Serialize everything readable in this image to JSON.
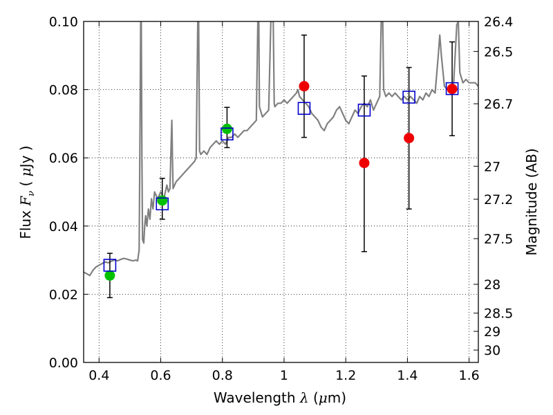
{
  "chart_data": {
    "type": "scatter",
    "title": "",
    "xlabel": "Wavelength  λ (μm)",
    "xlabel_prefix": "Wavelength  ",
    "xlabel_lambda": "λ",
    "xlabel_unit_open": " (",
    "xlabel_mu": "μ",
    "xlabel_unit": "m)",
    "ylabel": "Flux  Fν  ( μJy )",
    "ylabel_prefix": "Flux  ",
    "ylabel_F": "F",
    "ylabel_nu": "ν",
    "ylabel_open": "  ( ",
    "ylabel_mu": "μ",
    "ylabel_unit": "Jy )",
    "y2label": "Magnitude (AB)",
    "xlim": [
      0.35,
      1.63
    ],
    "ylim": [
      0.0,
      0.1
    ],
    "grid": true,
    "xticks": [
      {
        "value": 0.4,
        "label": "0.4"
      },
      {
        "value": 0.6,
        "label": "0.6"
      },
      {
        "value": 0.8,
        "label": "0.8"
      },
      {
        "value": 1.0,
        "label": "1"
      },
      {
        "value": 1.2,
        "label": "1.2"
      },
      {
        "value": 1.4,
        "label": "1.4"
      },
      {
        "value": 1.6,
        "label": "1.6"
      }
    ],
    "yticks": [
      {
        "value": 0.0,
        "label": "0.00"
      },
      {
        "value": 0.02,
        "label": "0.02"
      },
      {
        "value": 0.04,
        "label": "0.04"
      },
      {
        "value": 0.06,
        "label": "0.06"
      },
      {
        "value": 0.08,
        "label": "0.08"
      },
      {
        "value": 0.1,
        "label": "0.10"
      }
    ],
    "y2ticks": [
      {
        "value": 26.4,
        "label": "26.4"
      },
      {
        "value": 26.5,
        "label": "26.5"
      },
      {
        "value": 26.7,
        "label": "26.7"
      },
      {
        "value": 27.0,
        "label": "27"
      },
      {
        "value": 27.2,
        "label": "27.2"
      },
      {
        "value": 27.5,
        "label": "27.5"
      },
      {
        "value": 28.0,
        "label": "28"
      },
      {
        "value": 28.5,
        "label": "28.5"
      },
      {
        "value": 29.0,
        "label": "29"
      },
      {
        "value": 30.0,
        "label": "30"
      }
    ],
    "series": [
      {
        "name": "model spectrum",
        "kind": "line",
        "color": "#808080",
        "points": [
          [
            0.35,
            0.0265
          ],
          [
            0.36,
            0.026
          ],
          [
            0.37,
            0.0255
          ],
          [
            0.38,
            0.027
          ],
          [
            0.39,
            0.028
          ],
          [
            0.4,
            0.0285
          ],
          [
            0.41,
            0.029
          ],
          [
            0.42,
            0.0295
          ],
          [
            0.43,
            0.0292
          ],
          [
            0.44,
            0.0297
          ],
          [
            0.45,
            0.03
          ],
          [
            0.46,
            0.0298
          ],
          [
            0.47,
            0.0302
          ],
          [
            0.48,
            0.0305
          ],
          [
            0.49,
            0.0303
          ],
          [
            0.5,
            0.03
          ],
          [
            0.51,
            0.0298
          ],
          [
            0.52,
            0.03
          ],
          [
            0.525,
            0.0298
          ],
          [
            0.53,
            0.033
          ],
          [
            0.533,
            0.07
          ],
          [
            0.535,
            0.1
          ],
          [
            0.537,
            0.1
          ],
          [
            0.539,
            0.06
          ],
          [
            0.541,
            0.036
          ],
          [
            0.545,
            0.035
          ],
          [
            0.548,
            0.04
          ],
          [
            0.551,
            0.043
          ],
          [
            0.555,
            0.04
          ],
          [
            0.56,
            0.045
          ],
          [
            0.565,
            0.042
          ],
          [
            0.57,
            0.048
          ],
          [
            0.575,
            0.045
          ],
          [
            0.58,
            0.05
          ],
          [
            0.59,
            0.048
          ],
          [
            0.6,
            0.05
          ],
          [
            0.61,
            0.048
          ],
          [
            0.62,
            0.052
          ],
          [
            0.625,
            0.05
          ],
          [
            0.63,
            0.051
          ],
          [
            0.634,
            0.065
          ],
          [
            0.636,
            0.071
          ],
          [
            0.638,
            0.06
          ],
          [
            0.64,
            0.051
          ],
          [
            0.65,
            0.053
          ],
          [
            0.66,
            0.054
          ],
          [
            0.67,
            0.055
          ],
          [
            0.68,
            0.056
          ],
          [
            0.69,
            0.057
          ],
          [
            0.7,
            0.058
          ],
          [
            0.71,
            0.059
          ],
          [
            0.715,
            0.06
          ],
          [
            0.72,
            0.1
          ],
          [
            0.723,
            0.1
          ],
          [
            0.726,
            0.062
          ],
          [
            0.73,
            0.061
          ],
          [
            0.74,
            0.062
          ],
          [
            0.75,
            0.061
          ],
          [
            0.76,
            0.063
          ],
          [
            0.77,
            0.064
          ],
          [
            0.78,
            0.065
          ],
          [
            0.79,
            0.064
          ],
          [
            0.8,
            0.065
          ],
          [
            0.81,
            0.064
          ],
          [
            0.82,
            0.066
          ],
          [
            0.83,
            0.066
          ],
          [
            0.84,
            0.067
          ],
          [
            0.85,
            0.066
          ],
          [
            0.86,
            0.067
          ],
          [
            0.87,
            0.068
          ],
          [
            0.88,
            0.068
          ],
          [
            0.89,
            0.069
          ],
          [
            0.9,
            0.07
          ],
          [
            0.91,
            0.071
          ],
          [
            0.915,
            0.1
          ],
          [
            0.918,
            0.1
          ],
          [
            0.92,
            0.075
          ],
          [
            0.93,
            0.072
          ],
          [
            0.94,
            0.073
          ],
          [
            0.95,
            0.074
          ],
          [
            0.957,
            0.1
          ],
          [
            0.965,
            0.1
          ],
          [
            0.968,
            0.076
          ],
          [
            0.97,
            0.075
          ],
          [
            0.98,
            0.076
          ],
          [
            0.99,
            0.076
          ],
          [
            1.0,
            0.077
          ],
          [
            1.01,
            0.076
          ],
          [
            1.02,
            0.077
          ],
          [
            1.03,
            0.078
          ],
          [
            1.04,
            0.079
          ],
          [
            1.045,
            0.08
          ],
          [
            1.05,
            0.078
          ],
          [
            1.06,
            0.077
          ],
          [
            1.07,
            0.076
          ],
          [
            1.08,
            0.075
          ],
          [
            1.09,
            0.073
          ],
          [
            1.1,
            0.072
          ],
          [
            1.11,
            0.071
          ],
          [
            1.12,
            0.069
          ],
          [
            1.13,
            0.068
          ],
          [
            1.14,
            0.07
          ],
          [
            1.15,
            0.071
          ],
          [
            1.16,
            0.072
          ],
          [
            1.17,
            0.074
          ],
          [
            1.18,
            0.075
          ],
          [
            1.19,
            0.073
          ],
          [
            1.2,
            0.071
          ],
          [
            1.21,
            0.07
          ],
          [
            1.22,
            0.072
          ],
          [
            1.23,
            0.074
          ],
          [
            1.24,
            0.073
          ],
          [
            1.25,
            0.075
          ],
          [
            1.26,
            0.076
          ],
          [
            1.27,
            0.075
          ],
          [
            1.28,
            0.077
          ],
          [
            1.29,
            0.074
          ],
          [
            1.3,
            0.076
          ],
          [
            1.31,
            0.078
          ],
          [
            1.315,
            0.1
          ],
          [
            1.32,
            0.1
          ],
          [
            1.323,
            0.08
          ],
          [
            1.33,
            0.078
          ],
          [
            1.34,
            0.079
          ],
          [
            1.35,
            0.078
          ],
          [
            1.36,
            0.079
          ],
          [
            1.37,
            0.078
          ],
          [
            1.38,
            0.077
          ],
          [
            1.39,
            0.078
          ],
          [
            1.4,
            0.077
          ],
          [
            1.41,
            0.078
          ],
          [
            1.42,
            0.077
          ],
          [
            1.43,
            0.076
          ],
          [
            1.44,
            0.078
          ],
          [
            1.45,
            0.077
          ],
          [
            1.46,
            0.079
          ],
          [
            1.47,
            0.078
          ],
          [
            1.48,
            0.08
          ],
          [
            1.49,
            0.079
          ],
          [
            1.5,
            0.09
          ],
          [
            1.505,
            0.096
          ],
          [
            1.51,
            0.09
          ],
          [
            1.52,
            0.081
          ],
          [
            1.53,
            0.08
          ],
          [
            1.54,
            0.081
          ],
          [
            1.55,
            0.082
          ],
          [
            1.56,
            0.099
          ],
          [
            1.565,
            0.1
          ],
          [
            1.57,
            0.085
          ],
          [
            1.58,
            0.082
          ],
          [
            1.59,
            0.083
          ],
          [
            1.6,
            0.082
          ],
          [
            1.61,
            0.082
          ],
          [
            1.62,
            0.082
          ],
          [
            1.63,
            0.081
          ]
        ]
      },
      {
        "name": "model photometry",
        "kind": "open-square",
        "color": "#0000cc",
        "points": [
          [
            0.435,
            0.0285
          ],
          [
            0.605,
            0.0465
          ],
          [
            0.815,
            0.067
          ],
          [
            1.065,
            0.0745
          ],
          [
            1.26,
            0.074
          ],
          [
            1.405,
            0.0778
          ],
          [
            1.545,
            0.0803
          ]
        ]
      },
      {
        "name": "detections",
        "kind": "filled-circle",
        "color": "#00c000",
        "points": [
          [
            0.435,
            0.0255
          ],
          [
            0.605,
            0.0475
          ],
          [
            0.815,
            0.0685
          ]
        ]
      },
      {
        "name": "observed fluxes",
        "kind": "filled-circle",
        "color": "#ee0000",
        "points": [
          [
            1.065,
            0.081
          ],
          [
            1.26,
            0.0585
          ],
          [
            1.405,
            0.0658
          ],
          [
            1.545,
            0.0802
          ]
        ]
      },
      {
        "name": "error bars",
        "kind": "errorbar",
        "color": "#000000",
        "points": [
          [
            0.435,
            0.019,
            0.032
          ],
          [
            0.605,
            0.042,
            0.054
          ],
          [
            0.815,
            0.063,
            0.0748
          ],
          [
            1.065,
            0.066,
            0.096
          ],
          [
            1.26,
            0.0325,
            0.084
          ],
          [
            1.405,
            0.045,
            0.0865
          ],
          [
            1.545,
            0.0665,
            0.094
          ]
        ]
      }
    ]
  }
}
